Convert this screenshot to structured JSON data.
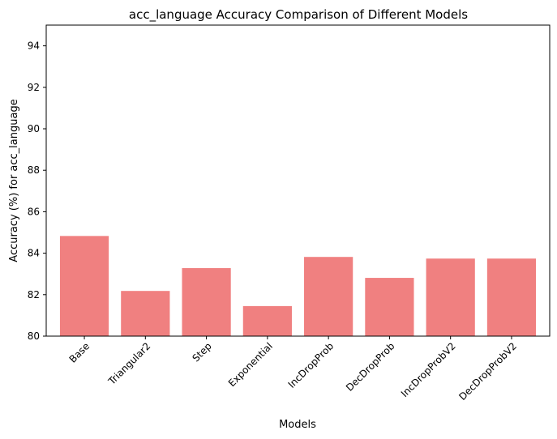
{
  "chart_data": {
    "type": "bar",
    "title": "acc_language Accuracy Comparison of Different Models",
    "xlabel": "Models",
    "ylabel": "Accuracy (%) for acc_language",
    "categories": [
      "Base",
      "Triangular2",
      "Step",
      "Exponential",
      "IncDropProb",
      "DecDropProb",
      "IncDropProbV2",
      "DecDropProbV2"
    ],
    "values": [
      84.83,
      82.18,
      83.28,
      81.45,
      83.82,
      82.81,
      83.74,
      83.74
    ],
    "ylim": [
      80,
      95
    ],
    "yticks": [
      80,
      82,
      84,
      86,
      88,
      90,
      92,
      94
    ],
    "bar_color": "#f08080",
    "grid": false,
    "legend": "none"
  }
}
